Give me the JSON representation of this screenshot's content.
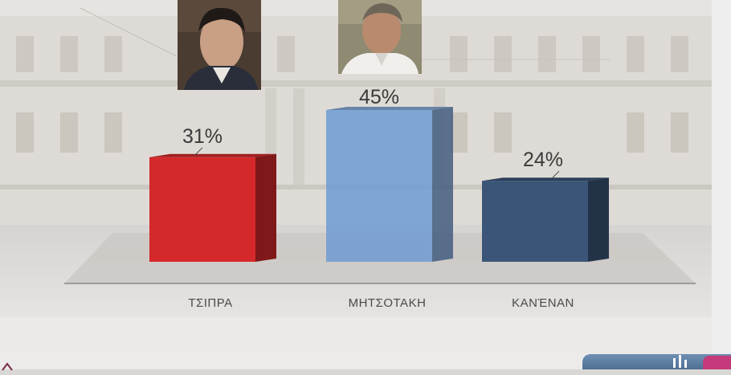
{
  "chart_data": {
    "type": "bar",
    "title": "",
    "xlabel": "",
    "ylabel": "",
    "ylim": [
      0,
      50
    ],
    "grid": false,
    "categories": [
      "ΤΣΙΠΡΑ",
      "ΜΗΤΣΟΤΑΚΗ",
      "ΚΑΝΈΝΑΝ"
    ],
    "values": [
      31,
      45,
      24
    ],
    "value_labels": [
      "31%",
      "45%",
      "24%"
    ],
    "colors": [
      "#d4282a",
      "#6f9bd4",
      "#3a5577"
    ]
  },
  "photos": [
    {
      "depicts": "tsipras-portrait",
      "category": "ΤΣΙΠΡΑ"
    },
    {
      "depicts": "mitsotakis-portrait",
      "category": "ΜΗΤΣΟΤΑΚΗ"
    }
  ]
}
